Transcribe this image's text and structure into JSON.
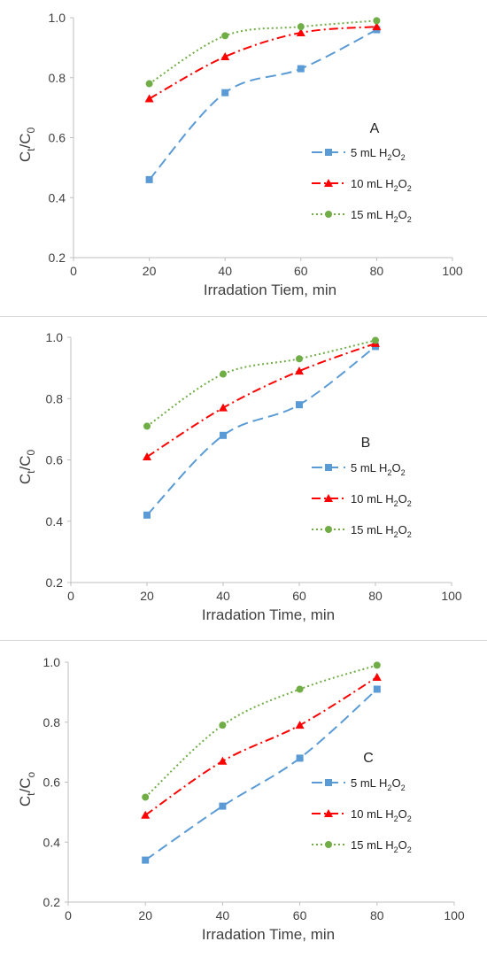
{
  "colors": {
    "series_5": "#5b9bd5",
    "series_10": "#ff0000",
    "series_15": "#70ad47",
    "axis": "#bfbfbf"
  },
  "chart_data": [
    {
      "type": "line",
      "panel_label": "A",
      "xlabel": "Irradation Tiem, min",
      "ylabel": {
        "base": "C",
        "sub1": "t",
        "slash": "/C",
        "sub2": "0"
      },
      "xlim": [
        0,
        100
      ],
      "ylim": [
        0.2,
        1.0
      ],
      "xticks": [
        0,
        20,
        40,
        60,
        80,
        100
      ],
      "yticks": [
        0.2,
        0.4,
        0.6,
        0.8,
        1.0
      ],
      "x": [
        20,
        40,
        60,
        80
      ],
      "legend_position": "right",
      "series": [
        {
          "name": "5 mL H2O2",
          "label_pre": "5 mL H",
          "label_mid": "O",
          "sub": "2",
          "marker": "square",
          "line": "dash",
          "values": [
            0.46,
            0.75,
            0.83,
            0.96
          ]
        },
        {
          "name": "10 mL H2O2",
          "label_pre": "10 mL H",
          "label_mid": "O",
          "sub": "2",
          "marker": "triangle",
          "line": "dashdot",
          "values": [
            0.73,
            0.87,
            0.95,
            0.97
          ]
        },
        {
          "name": "15 mL H2O2",
          "label_pre": "15 mL H",
          "label_mid": "O",
          "sub": "2",
          "marker": "circle",
          "line": "dot",
          "values": [
            0.78,
            0.94,
            0.97,
            0.99
          ]
        }
      ]
    },
    {
      "type": "line",
      "panel_label": "B",
      "xlabel": "Irradation Time, min",
      "ylabel": {
        "base": "C",
        "sub1": "t",
        "slash": "/C",
        "sub2": "0"
      },
      "xlim": [
        0,
        100
      ],
      "ylim": [
        0.2,
        1.0
      ],
      "xticks": [
        0,
        20,
        40,
        60,
        80,
        100
      ],
      "yticks": [
        0.2,
        0.4,
        0.6,
        0.8,
        1.0
      ],
      "x": [
        20,
        40,
        60,
        80
      ],
      "legend_position": "right",
      "series": [
        {
          "name": "5 mL H2O2",
          "label_pre": "5 mL H",
          "label_mid": "O",
          "sub": "2",
          "marker": "square",
          "line": "dash",
          "values": [
            0.42,
            0.68,
            0.78,
            0.97
          ]
        },
        {
          "name": "10 mL H2O2",
          "label_pre": "10 mL H",
          "label_mid": "O",
          "sub": "2",
          "marker": "triangle",
          "line": "dashdot",
          "values": [
            0.61,
            0.77,
            0.89,
            0.98
          ]
        },
        {
          "name": "15 mL H2O2",
          "label_pre": "15 mL H",
          "label_mid": "O",
          "sub": "2",
          "marker": "circle",
          "line": "dot",
          "values": [
            0.71,
            0.88,
            0.93,
            0.99
          ]
        }
      ]
    },
    {
      "type": "line",
      "panel_label": "C",
      "xlabel": "Irradation Time, min",
      "ylabel": {
        "base": "C",
        "sub1": "t",
        "slash": "/C",
        "sub2": "o"
      },
      "xlim": [
        0,
        100
      ],
      "ylim": [
        0.2,
        1.0
      ],
      "xticks": [
        0,
        20,
        40,
        60,
        80,
        100
      ],
      "yticks": [
        0.2,
        0.4,
        0.6,
        0.8,
        1.0
      ],
      "x": [
        20,
        40,
        60,
        80
      ],
      "legend_position": "right",
      "series": [
        {
          "name": "5 mL H2O2",
          "label_pre": "5 mL H",
          "label_mid": "O",
          "sub": "2",
          "marker": "square",
          "line": "dash",
          "values": [
            0.34,
            0.52,
            0.68,
            0.91
          ]
        },
        {
          "name": "10 mL H2O2",
          "label_pre": "10 mL H",
          "label_mid": "O",
          "sub": "2",
          "marker": "triangle",
          "line": "dashdot",
          "values": [
            0.49,
            0.67,
            0.79,
            0.95
          ]
        },
        {
          "name": "15 mL H2O2",
          "label_pre": "15 mL H",
          "label_mid": "O",
          "sub": "2",
          "marker": "circle",
          "line": "dot",
          "values": [
            0.55,
            0.79,
            0.91,
            0.99
          ]
        }
      ]
    }
  ]
}
